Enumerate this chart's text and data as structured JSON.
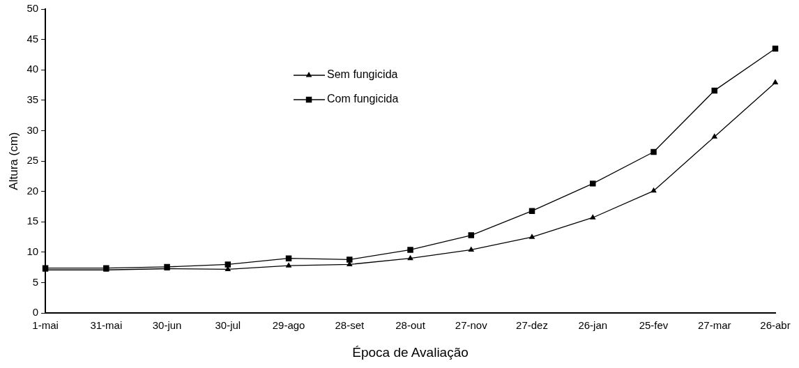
{
  "chart_data": {
    "type": "line",
    "xlabel": "Época de Avaliação",
    "ylabel": "Altura (cm)",
    "categories": [
      "1-mai",
      "31-mai",
      "30-jun",
      "30-jul",
      "29-ago",
      "28-set",
      "28-out",
      "27-nov",
      "27-dez",
      "26-jan",
      "25-fev",
      "27-mar",
      "26-abr"
    ],
    "series": [
      {
        "name": "Sem fungicida",
        "color": "#000000",
        "marker": "triangle",
        "values": [
          7.1,
          7.1,
          7.3,
          7.2,
          7.8,
          8.0,
          9.0,
          10.4,
          12.5,
          15.7,
          20.1,
          29.0,
          37.9
        ]
      },
      {
        "name": "Com fungicida",
        "color": "#000000",
        "marker": "square",
        "values": [
          7.4,
          7.4,
          7.6,
          8.0,
          9.0,
          8.8,
          10.4,
          12.8,
          16.8,
          21.3,
          26.5,
          36.6,
          43.5
        ]
      }
    ],
    "ylim": [
      0,
      50
    ],
    "yticks": [
      0,
      5,
      10,
      15,
      20,
      25,
      30,
      35,
      40,
      45,
      50
    ],
    "grid": false,
    "legend": "top",
    "line_style": "solid"
  }
}
